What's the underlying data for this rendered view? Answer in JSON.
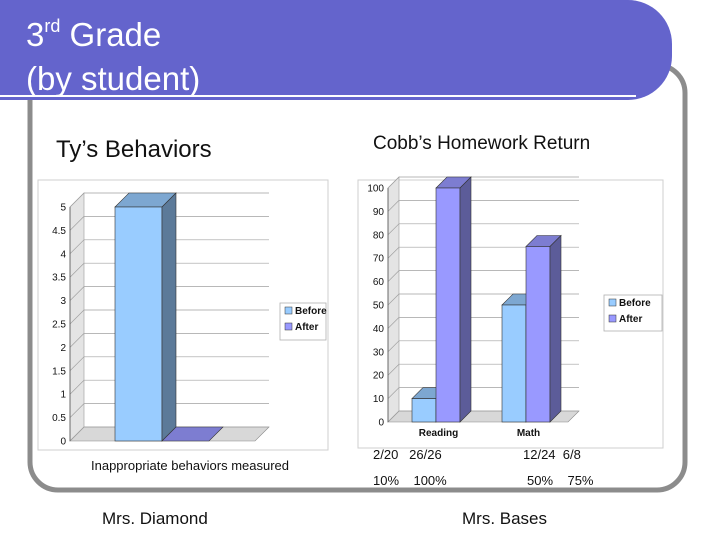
{
  "slide": {
    "title_main": "3",
    "title_sup": "rd",
    "title_rest": " Grade",
    "title_line2": "(by student)",
    "colors": {
      "title_bar": "#6464cc",
      "frame": "#8c8c8c",
      "before": "#99ccff",
      "after": "#9999ff",
      "wall": "#d8d8d8"
    }
  },
  "left": {
    "heading": "Ty’s Behaviors",
    "measure_label": "Inappropriate behaviors measured",
    "teacher": "Mrs. Diamond"
  },
  "right": {
    "heading": "Cobb’s Homework Return",
    "teacher": "Mrs. Bases",
    "stats": {
      "reading_counts": "2/20   26/26",
      "reading_pcts": "10%    100%",
      "math_counts": "12/24  6/8",
      "math_pcts": "50%    75%"
    }
  },
  "chart_data": [
    {
      "type": "bar",
      "categories": [
        ""
      ],
      "series": [
        {
          "name": "Before",
          "values": [
            5
          ]
        },
        {
          "name": "After",
          "values": [
            0
          ]
        }
      ],
      "ylim": [
        0,
        5
      ],
      "yticks": [
        "0",
        "0.5",
        "1",
        "1.5",
        "2",
        "2.5",
        "3",
        "3.5",
        "4",
        "4.5",
        "5"
      ],
      "legend": "right",
      "grid": true
    },
    {
      "type": "bar",
      "categories": [
        "Reading",
        "Math"
      ],
      "series": [
        {
          "name": "Before",
          "values": [
            10,
            50
          ]
        },
        {
          "name": "After",
          "values": [
            100,
            75
          ]
        }
      ],
      "ylim": [
        0,
        100
      ],
      "yticks": [
        "0",
        "10",
        "20",
        "30",
        "40",
        "50",
        "60",
        "70",
        "80",
        "90",
        "100"
      ],
      "legend": "right",
      "grid": true
    }
  ]
}
